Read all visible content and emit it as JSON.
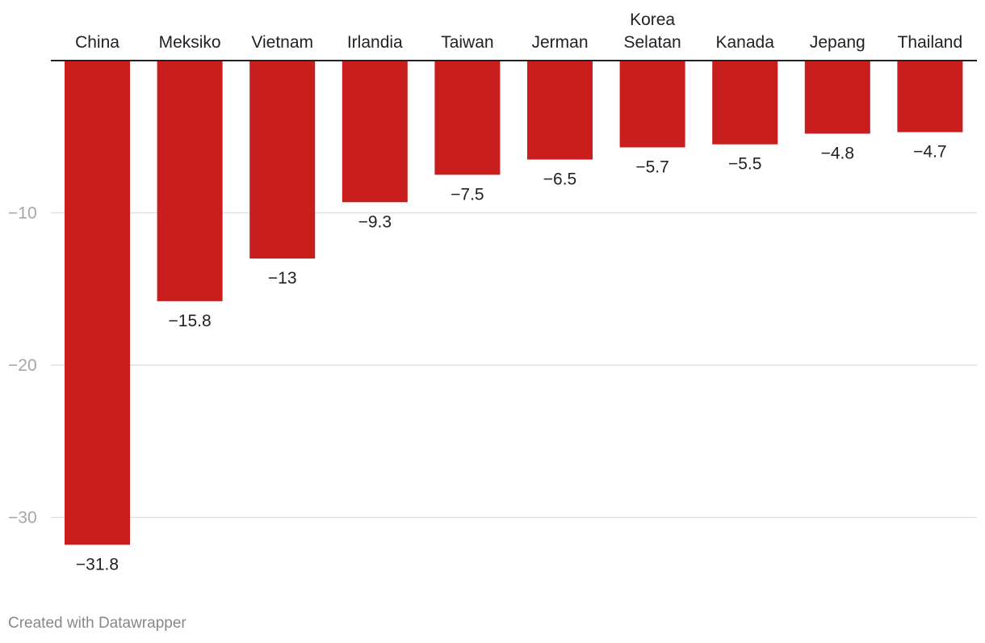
{
  "chart_data": {
    "type": "bar",
    "categories": [
      "China",
      "Meksiko",
      "Vietnam",
      "Irlandia",
      "Taiwan",
      "Jerman",
      "Korea Selatan",
      "Kanada",
      "Jepang",
      "Thailand"
    ],
    "category_lines": [
      [
        "China"
      ],
      [
        "Meksiko"
      ],
      [
        "Vietnam"
      ],
      [
        "Irlandia"
      ],
      [
        "Taiwan"
      ],
      [
        "Jerman"
      ],
      [
        "Korea",
        "Selatan"
      ],
      [
        "Kanada"
      ],
      [
        "Jepang"
      ],
      [
        "Thailand"
      ]
    ],
    "values": [
      -31.8,
      -15.8,
      -13,
      -9.3,
      -7.5,
      -6.5,
      -5.7,
      -5.5,
      -4.8,
      -4.7
    ],
    "value_labels": [
      "−31.8",
      "−15.8",
      "−13",
      "−9.3",
      "−7.5",
      "−6.5",
      "−5.7",
      "−5.5",
      "−4.8",
      "−4.7"
    ],
    "ylim": [
      -32,
      0
    ],
    "yticks": [
      -10,
      -20,
      -30
    ],
    "ytick_labels": [
      "−10",
      "−20",
      "−30"
    ],
    "grid": true,
    "category_axis_position": "top",
    "title": "",
    "xlabel": "",
    "ylabel": ""
  },
  "colors": {
    "bar": "#c81e1e",
    "grid": "#e1e1e1",
    "axis": "#222222",
    "tick_label": "#a6a6a6",
    "text": "#222222"
  },
  "footer": {
    "credit": "Created with Datawrapper"
  }
}
